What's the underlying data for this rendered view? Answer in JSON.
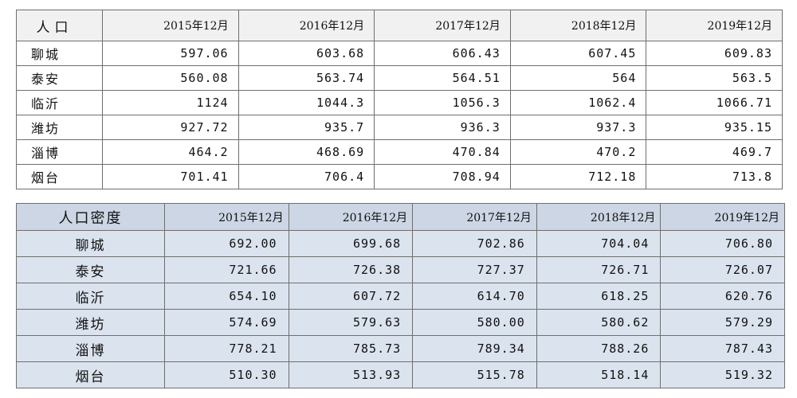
{
  "population_table": {
    "corner": "人口",
    "columns": [
      "2015年12月",
      "2016年12月",
      "2017年12月",
      "2018年12月",
      "2019年12月"
    ],
    "rows": [
      {
        "city": "聊城",
        "values": [
          "597.06",
          "603.68",
          "606.43",
          "607.45",
          "609.83"
        ]
      },
      {
        "city": "泰安",
        "values": [
          "560.08",
          "563.74",
          "564.51",
          "564",
          "563.5"
        ]
      },
      {
        "city": "临沂",
        "values": [
          "1124",
          "1044.3",
          "1056.3",
          "1062.4",
          "1066.71"
        ]
      },
      {
        "city": "潍坊",
        "values": [
          "927.72",
          "935.7",
          "936.3",
          "937.3",
          "935.15"
        ]
      },
      {
        "city": "淄博",
        "values": [
          "464.2",
          "468.69",
          "470.84",
          "470.2",
          "469.7"
        ]
      },
      {
        "city": "烟台",
        "values": [
          "701.41",
          "706.4",
          "708.94",
          "712.18",
          "713.8"
        ]
      }
    ]
  },
  "density_table": {
    "corner": "人口密度",
    "columns": [
      "2015年12月",
      "2016年12月",
      "2017年12月",
      "2018年12月",
      "2019年12月"
    ],
    "rows": [
      {
        "city": "聊城",
        "values": [
          "692.00",
          "699.68",
          "702.86",
          "704.04",
          "706.80"
        ]
      },
      {
        "city": "泰安",
        "values": [
          "721.66",
          "726.38",
          "727.37",
          "726.71",
          "726.07"
        ]
      },
      {
        "city": "临沂",
        "values": [
          "654.10",
          "607.72",
          "614.70",
          "618.25",
          "620.76"
        ]
      },
      {
        "city": "潍坊",
        "values": [
          "574.69",
          "579.63",
          "580.00",
          "580.62",
          "579.29"
        ]
      },
      {
        "city": "淄博",
        "values": [
          "778.21",
          "785.73",
          "789.34",
          "788.26",
          "787.43"
        ]
      },
      {
        "city": "烟台",
        "values": [
          "510.30",
          "513.93",
          "515.78",
          "518.14",
          "519.32"
        ]
      }
    ]
  }
}
